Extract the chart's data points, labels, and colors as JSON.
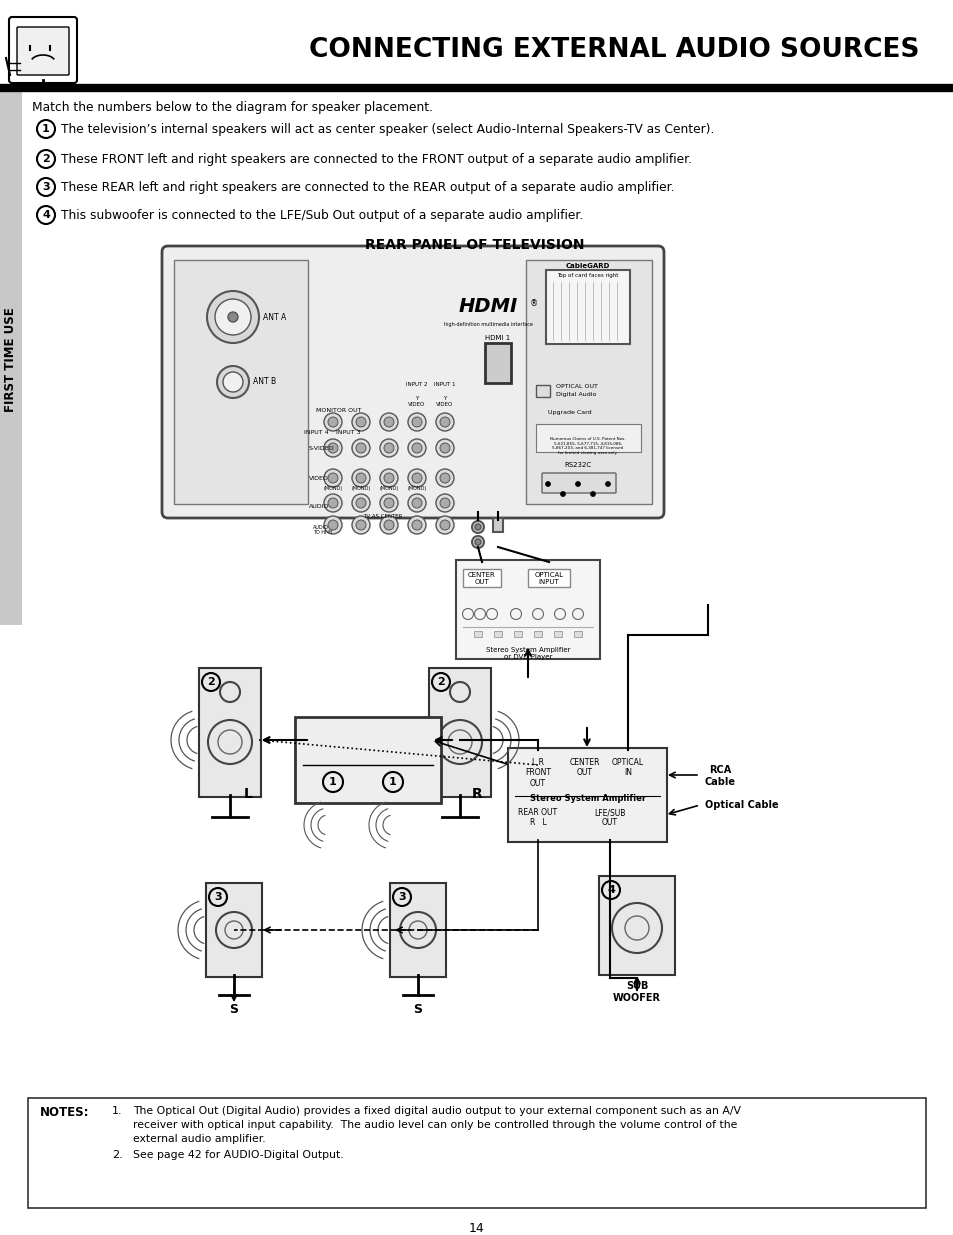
{
  "title": "CONNECTING EXTERNAL AUDIO SOURCES",
  "page_number": "14",
  "sidebar_text": "FIRST TIME USE",
  "header_subtitle": "Match the numbers below to the diagram for speaker placement.",
  "numbered_items": [
    "The television’s internal speakers will act as center speaker (select Audio-Internal Speakers-TV as Center).",
    "These FRONT left and right speakers are connected to the FRONT output of a separate audio amplifier.",
    "These REAR left and right speakers are connected to the REAR output of a separate audio amplifier.",
    "This subwoofer is connected to the LFE/Sub Out output of a separate audio amplifier."
  ],
  "rear_panel_title": "REAR PANEL OF TELEVISION",
  "notes_label": "NOTES:",
  "notes_line1a": "The Optical Out (Digital Audio) provides a fixed digital audio output to your external component such as an A/V",
  "notes_line1b": "receiver with optical input capability.  The audio level can only be controlled through the volume control of the",
  "notes_line1c": "external audio amplifier.",
  "notes_line2": "See page 42 for AUDIO-Digital Output.",
  "bg_color": "#ffffff",
  "text_color": "#000000"
}
